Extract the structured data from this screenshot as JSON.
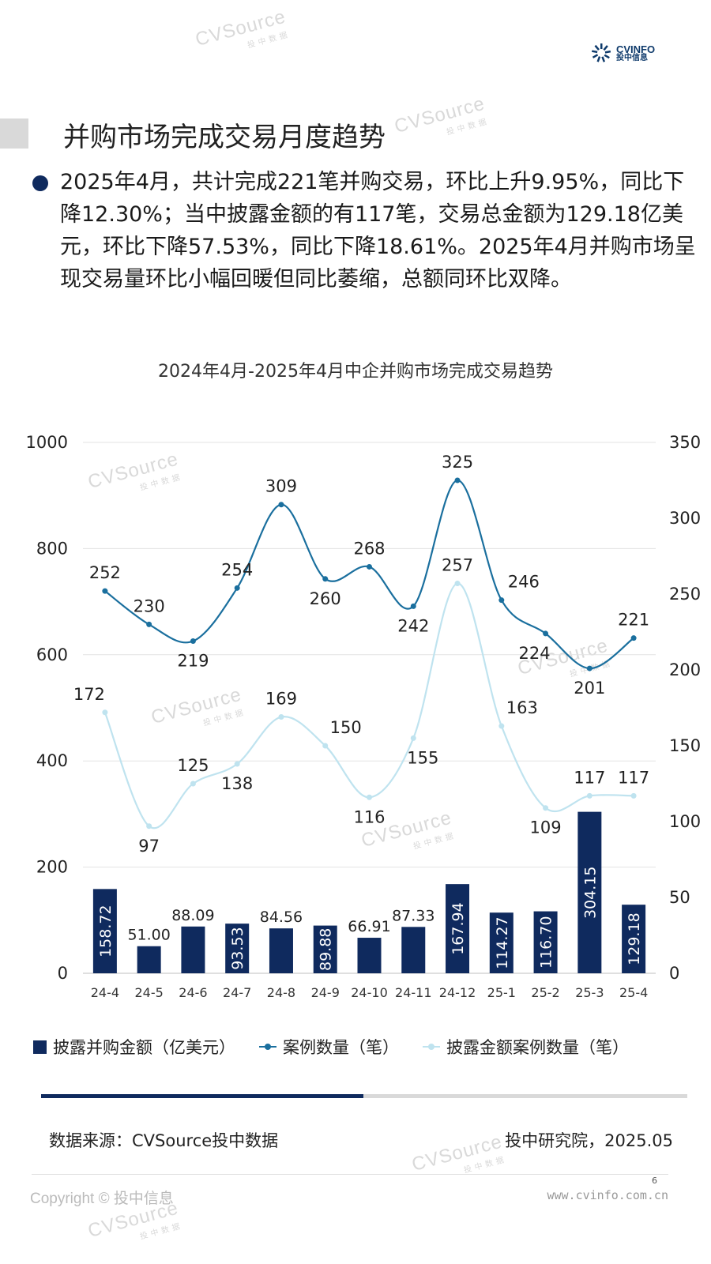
{
  "header": {
    "logo_top": "CVINFO",
    "logo_bottom": "投中信息",
    "watermark_text": "CVSource",
    "watermark_sub": "投中数据"
  },
  "page_title": "并购市场完成交易月度趋势",
  "bullet": "2025年4月，共计完成221笔并购交易，环比上升9.95%，同比下降12.30%；当中披露金额的有117笔，交易总金额为129.18亿美元，环比下降57.53%，同比下降18.61%。2025年4月并购市场呈现交易量环比小幅回暖但同比萎缩，总额同环比双降。",
  "chart_title": "2024年4月-2025年4月中企并购市场完成交易趋势",
  "chart_data": {
    "type": "bar",
    "categories": [
      "24-4",
      "24-5",
      "24-6",
      "24-7",
      "24-8",
      "24-9",
      "24-10",
      "24-11",
      "24-12",
      "25-1",
      "25-2",
      "25-3",
      "25-4"
    ],
    "y_left": {
      "min": 0,
      "max": 1000,
      "ticks": [
        0,
        200,
        400,
        600,
        800,
        1000
      ]
    },
    "y_right": {
      "min": 0,
      "max": 350,
      "ticks": [
        0,
        50,
        100,
        150,
        200,
        250,
        300,
        350
      ]
    },
    "grid": true,
    "series": [
      {
        "name": "披露并购金额（亿美元）",
        "kind": "bar",
        "axis": "left",
        "color": "#0f2a5e",
        "values": [
          158.72,
          51.0,
          88.09,
          93.53,
          84.56,
          89.88,
          66.91,
          87.33,
          167.94,
          114.27,
          116.7,
          304.15,
          129.18
        ],
        "labels": [
          "158.72",
          "51.00",
          "88.09",
          "93.53",
          "84.56",
          "89.88",
          "66.91",
          "87.33",
          "167.94",
          "114.27",
          "116.70",
          "304.15",
          "129.18"
        ]
      },
      {
        "name": "案例数量（笔）",
        "kind": "line",
        "axis": "right",
        "color": "#1a6f9e",
        "values": [
          252,
          230,
          219,
          254,
          309,
          260,
          268,
          242,
          325,
          246,
          224,
          201,
          221
        ]
      },
      {
        "name": "披露金额案例数量（笔）",
        "kind": "line",
        "axis": "right",
        "color": "#bfe3ef",
        "values": [
          172,
          97,
          125,
          138,
          169,
          150,
          116,
          155,
          257,
          163,
          109,
          117,
          117
        ]
      }
    ]
  },
  "footer": {
    "source": "数据来源：CVSource投中数据",
    "credit": "投中研究院，2025.05",
    "page_number": "6",
    "copyright": "Copyright © 投中信息",
    "website": "www.cvinfo.com.cn"
  }
}
